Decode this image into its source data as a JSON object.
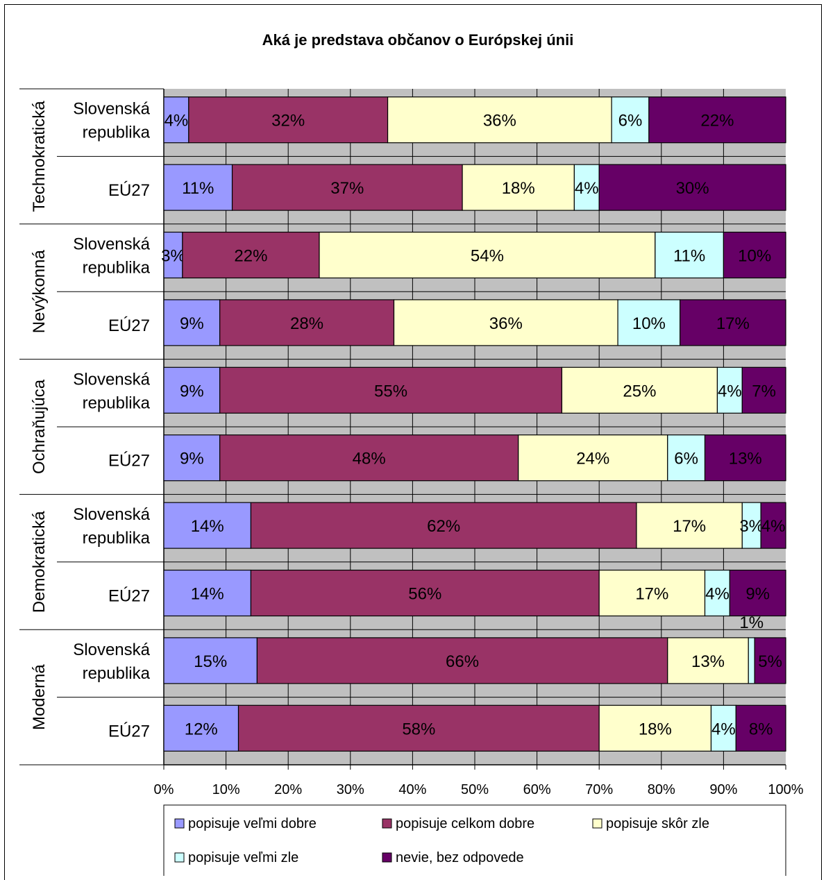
{
  "chart_data": {
    "type": "bar",
    "stacked": true,
    "orientation": "horizontal",
    "title": "Aká je predstava občanov o Európskej únii",
    "xlim": [
      0,
      100
    ],
    "x_ticks": [
      "0%",
      "10%",
      "20%",
      "30%",
      "40%",
      "50%",
      "60%",
      "70%",
      "80%",
      "90%",
      "100%"
    ],
    "grid": true,
    "legend_position": "bottom",
    "groups": [
      {
        "label": "Technokratická",
        "rows": [
          {
            "label": "Slovenská republika",
            "values": [
              4,
              32,
              36,
              6,
              22
            ]
          },
          {
            "label": "EÚ27",
            "values": [
              11,
              37,
              18,
              4,
              30
            ]
          }
        ]
      },
      {
        "label": "Nevýkonná",
        "rows": [
          {
            "label": "Slovenská republika",
            "values": [
              3,
              22,
              54,
              11,
              10
            ]
          },
          {
            "label": "EÚ27",
            "values": [
              9,
              28,
              36,
              10,
              17
            ]
          }
        ]
      },
      {
        "label": "Ochraňujúca",
        "rows": [
          {
            "label": "Slovenská republika",
            "values": [
              9,
              55,
              25,
              4,
              7
            ]
          },
          {
            "label": "EÚ27",
            "values": [
              9,
              48,
              24,
              6,
              13
            ]
          }
        ]
      },
      {
        "label": "Demokratická",
        "rows": [
          {
            "label": "Slovenská republika",
            "values": [
              14,
              62,
              17,
              3,
              4
            ]
          },
          {
            "label": "EÚ27",
            "values": [
              14,
              56,
              17,
              4,
              9
            ]
          }
        ]
      },
      {
        "label": "Moderná",
        "rows": [
          {
            "label": "Slovenská republika",
            "values": [
              15,
              66,
              13,
              1,
              5
            ]
          },
          {
            "label": "EÚ27",
            "values": [
              12,
              58,
              18,
              4,
              8
            ]
          }
        ]
      }
    ],
    "series": [
      {
        "name": "popisuje veľmi dobre",
        "color": "#9999ff"
      },
      {
        "name": "popisuje celkom dobre",
        "color": "#993366"
      },
      {
        "name": "popisuje skôr zle",
        "color": "#ffffcc"
      },
      {
        "name": "popisuje veľmi zle",
        "color": "#ccffff"
      },
      {
        "name": "nevie, bez odpovede",
        "color": "#660066"
      }
    ],
    "plot_background": "#c0c0c0"
  }
}
